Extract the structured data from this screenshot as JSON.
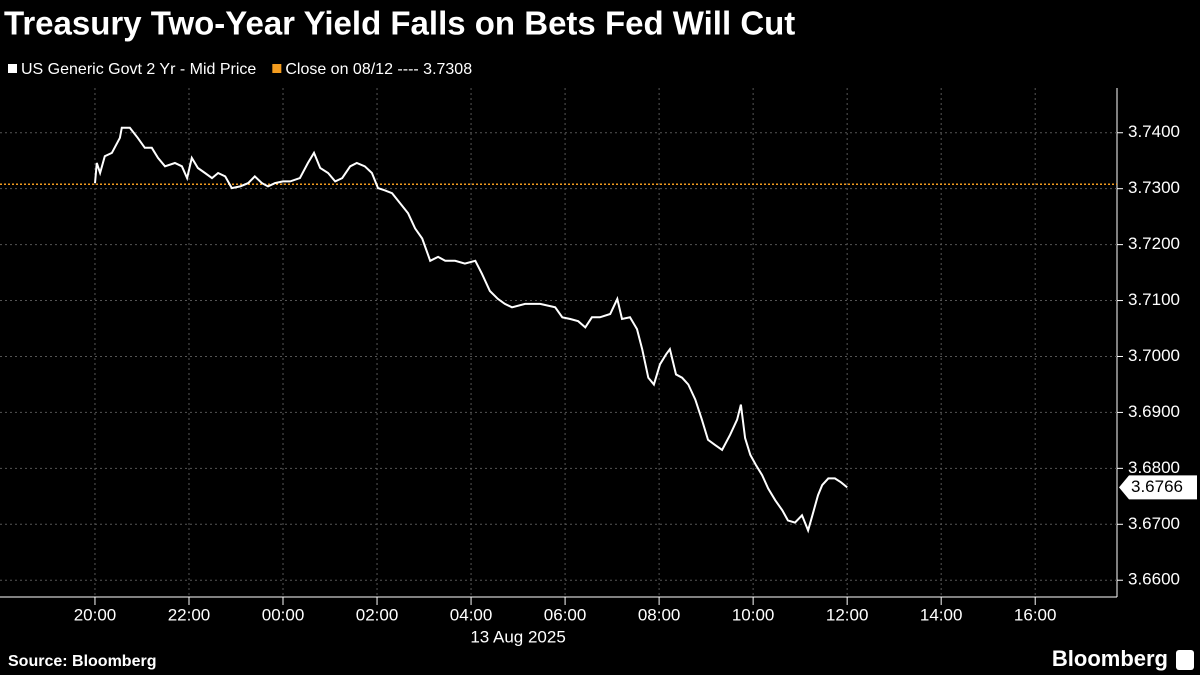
{
  "chart_data": {
    "type": "line",
    "title": "Treasury Two-Year Yield Falls on Bets Fed Will Cut",
    "x_label": "13 Aug 2025",
    "source": "Source: Bloomberg",
    "logo": "Bloomberg",
    "grid": true,
    "x": [
      20.0,
      20.04,
      20.11,
      20.21,
      20.36,
      20.53,
      20.57,
      20.74,
      20.91,
      21.06,
      21.21,
      21.34,
      21.49,
      21.7,
      21.85,
      21.96,
      22.06,
      22.19,
      22.34,
      22.49,
      22.62,
      22.77,
      22.91,
      23.09,
      23.26,
      23.4,
      23.55,
      23.68,
      23.83,
      24.0,
      24.15,
      24.36,
      24.53,
      24.66,
      24.79,
      24.96,
      25.11,
      25.26,
      25.43,
      25.57,
      25.74,
      25.89,
      26.02,
      26.17,
      26.32,
      26.49,
      26.66,
      26.81,
      26.96,
      27.13,
      27.3,
      27.45,
      27.66,
      27.87,
      28.09,
      28.23,
      28.4,
      28.57,
      28.72,
      28.87,
      29.15,
      29.47,
      29.79,
      29.94,
      30.11,
      30.28,
      30.43,
      30.57,
      30.74,
      30.96,
      31.11,
      31.21,
      31.38,
      31.53,
      31.64,
      31.77,
      31.89,
      32.02,
      32.15,
      32.23,
      32.36,
      32.49,
      32.62,
      32.77,
      32.91,
      33.04,
      33.19,
      33.34,
      33.51,
      33.66,
      33.74,
      33.83,
      33.94,
      34.06,
      34.19,
      34.32,
      34.47,
      34.62,
      34.74,
      34.89,
      35.04,
      35.17,
      35.26,
      35.38,
      35.47,
      35.6,
      35.74,
      35.87,
      36.0
    ],
    "series": [
      {
        "name": "US Generic Govt 2 Yr - Mid Price",
        "color": "#ffffff",
        "values": [
          3.731,
          3.7346,
          3.7328,
          3.7358,
          3.7364,
          3.7391,
          3.7409,
          3.7409,
          3.7391,
          3.7373,
          3.7373,
          3.7355,
          3.734,
          3.7346,
          3.734,
          3.7319,
          3.7355,
          3.7337,
          3.7328,
          3.7319,
          3.7328,
          3.7322,
          3.7301,
          3.7304,
          3.731,
          3.7322,
          3.731,
          3.7304,
          3.731,
          3.7313,
          3.7313,
          3.7319,
          3.7346,
          3.7364,
          3.7337,
          3.7328,
          3.7313,
          3.7319,
          3.734,
          3.7346,
          3.734,
          3.7328,
          3.7301,
          3.7297,
          3.7292,
          3.7274,
          3.7256,
          3.7229,
          3.7211,
          3.7171,
          3.7178,
          3.7171,
          3.7171,
          3.7166,
          3.7171,
          3.7148,
          3.7117,
          3.7103,
          3.7094,
          3.7088,
          3.7094,
          3.7094,
          3.7088,
          3.707,
          3.7067,
          3.7063,
          3.7052,
          3.707,
          3.707,
          3.7076,
          3.7103,
          3.7067,
          3.707,
          3.7049,
          3.7013,
          3.6962,
          3.695,
          3.6986,
          3.7004,
          3.7013,
          3.6968,
          3.6962,
          3.695,
          3.6923,
          3.6887,
          3.6851,
          3.6842,
          3.6833,
          3.686,
          3.6887,
          3.6914,
          3.6854,
          3.6824,
          3.6806,
          3.6788,
          3.6764,
          3.6743,
          3.6725,
          3.6707,
          3.6703,
          3.6716,
          3.6689,
          3.6716,
          3.6752,
          3.677,
          3.6782,
          3.6782,
          3.6775,
          3.6766
        ]
      }
    ],
    "reference_line": {
      "name": "Close on 08/12 ---- 3.7308",
      "value": 3.7308,
      "color": "#f39c1f"
    },
    "xlim": [
      17.98,
      41.74
    ],
    "xticks": [
      {
        "value": 20,
        "label": "20:00"
      },
      {
        "value": 22,
        "label": "22:00"
      },
      {
        "value": 24,
        "label": "00:00"
      },
      {
        "value": 26,
        "label": "02:00"
      },
      {
        "value": 28,
        "label": "04:00"
      },
      {
        "value": 30,
        "label": "06:00"
      },
      {
        "value": 32,
        "label": "08:00"
      },
      {
        "value": 34,
        "label": "10:00"
      },
      {
        "value": 36,
        "label": "12:00"
      },
      {
        "value": 38,
        "label": "14:00"
      },
      {
        "value": 40,
        "label": "16:00"
      }
    ],
    "ylim": [
      3.657,
      3.748
    ],
    "yticks": [
      {
        "value": 3.66,
        "label": "3.6600"
      },
      {
        "value": 3.67,
        "label": "3.6700"
      },
      {
        "value": 3.68,
        "label": "3.6800"
      },
      {
        "value": 3.69,
        "label": "3.6900"
      },
      {
        "value": 3.7,
        "label": "3.7000"
      },
      {
        "value": 3.71,
        "label": "3.7100"
      },
      {
        "value": 3.72,
        "label": "3.7200"
      },
      {
        "value": 3.73,
        "label": "3.7300"
      },
      {
        "value": 3.74,
        "label": "3.7400"
      }
    ]
  }
}
